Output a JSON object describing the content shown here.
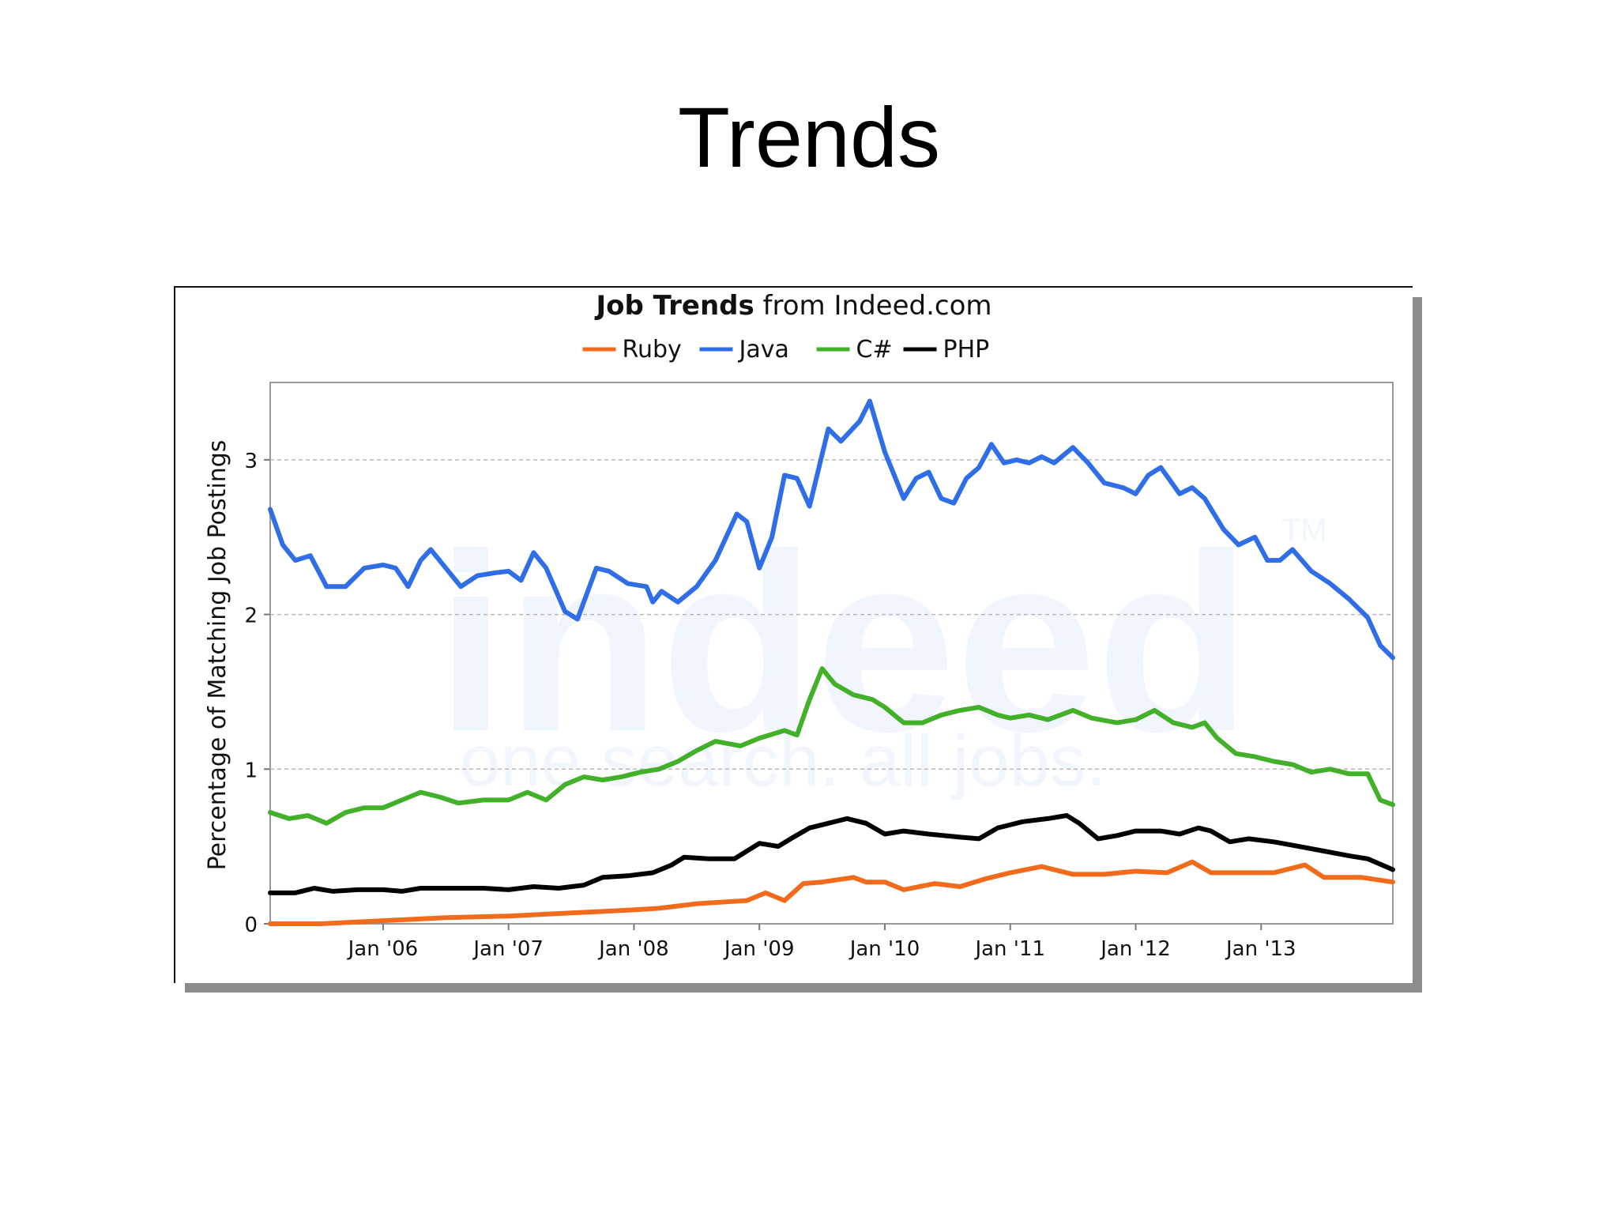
{
  "slide": {
    "title": "Trends"
  },
  "chart_data": {
    "type": "line",
    "title_bold": "Job Trends",
    "title_rest": " from Indeed.com",
    "ylabel": "Percentage of Matching Job Postings",
    "xlabel": "",
    "ylim": [
      0,
      3.5
    ],
    "xlim": [
      2005.1,
      2014.05
    ],
    "yticks": [
      0,
      1,
      2,
      3
    ],
    "xticks": [
      {
        "label": "Jan '06",
        "x": 2006.0
      },
      {
        "label": "Jan '07",
        "x": 2007.0
      },
      {
        "label": "Jan '08",
        "x": 2008.0
      },
      {
        "label": "Jan '09",
        "x": 2009.0
      },
      {
        "label": "Jan '10",
        "x": 2010.0
      },
      {
        "label": "Jan '11",
        "x": 2011.0
      },
      {
        "label": "Jan '12",
        "x": 2012.0
      },
      {
        "label": "Jan '13",
        "x": 2013.0
      }
    ],
    "grid": true,
    "legend": "top-center",
    "watermark": {
      "brand": "indeed",
      "tagline": "one search. all jobs.",
      "tm": "TM"
    },
    "series": [
      {
        "name": "Ruby",
        "color": "#f26b1d",
        "points": [
          [
            2005.1,
            0.0
          ],
          [
            2005.5,
            0.0
          ],
          [
            2006.0,
            0.02
          ],
          [
            2006.5,
            0.04
          ],
          [
            2007.0,
            0.05
          ],
          [
            2007.5,
            0.07
          ],
          [
            2008.0,
            0.09
          ],
          [
            2008.2,
            0.1
          ],
          [
            2008.5,
            0.13
          ],
          [
            2008.9,
            0.15
          ],
          [
            2009.05,
            0.2
          ],
          [
            2009.2,
            0.15
          ],
          [
            2009.35,
            0.26
          ],
          [
            2009.5,
            0.27
          ],
          [
            2009.75,
            0.3
          ],
          [
            2009.85,
            0.27
          ],
          [
            2010.0,
            0.27
          ],
          [
            2010.15,
            0.22
          ],
          [
            2010.4,
            0.26
          ],
          [
            2010.6,
            0.24
          ],
          [
            2010.8,
            0.29
          ],
          [
            2011.0,
            0.33
          ],
          [
            2011.25,
            0.37
          ],
          [
            2011.5,
            0.32
          ],
          [
            2011.75,
            0.32
          ],
          [
            2012.0,
            0.34
          ],
          [
            2012.25,
            0.33
          ],
          [
            2012.45,
            0.4
          ],
          [
            2012.6,
            0.33
          ],
          [
            2012.85,
            0.33
          ],
          [
            2013.1,
            0.33
          ],
          [
            2013.35,
            0.38
          ],
          [
            2013.5,
            0.3
          ],
          [
            2013.8,
            0.3
          ],
          [
            2014.05,
            0.27
          ]
        ]
      },
      {
        "name": "Java",
        "color": "#2f6ee6",
        "points": [
          [
            2005.1,
            2.68
          ],
          [
            2005.2,
            2.45
          ],
          [
            2005.3,
            2.35
          ],
          [
            2005.42,
            2.38
          ],
          [
            2005.55,
            2.18
          ],
          [
            2005.7,
            2.18
          ],
          [
            2005.85,
            2.3
          ],
          [
            2006.0,
            2.32
          ],
          [
            2006.1,
            2.3
          ],
          [
            2006.2,
            2.18
          ],
          [
            2006.3,
            2.35
          ],
          [
            2006.38,
            2.42
          ],
          [
            2006.5,
            2.3
          ],
          [
            2006.62,
            2.18
          ],
          [
            2006.75,
            2.25
          ],
          [
            2006.9,
            2.27
          ],
          [
            2007.0,
            2.28
          ],
          [
            2007.1,
            2.22
          ],
          [
            2007.2,
            2.4
          ],
          [
            2007.3,
            2.3
          ],
          [
            2007.45,
            2.02
          ],
          [
            2007.55,
            1.97
          ],
          [
            2007.7,
            2.3
          ],
          [
            2007.8,
            2.28
          ],
          [
            2007.95,
            2.2
          ],
          [
            2008.1,
            2.18
          ],
          [
            2008.15,
            2.08
          ],
          [
            2008.22,
            2.15
          ],
          [
            2008.35,
            2.08
          ],
          [
            2008.5,
            2.18
          ],
          [
            2008.65,
            2.35
          ],
          [
            2008.82,
            2.65
          ],
          [
            2008.9,
            2.6
          ],
          [
            2009.0,
            2.3
          ],
          [
            2009.1,
            2.5
          ],
          [
            2009.2,
            2.9
          ],
          [
            2009.3,
            2.88
          ],
          [
            2009.4,
            2.7
          ],
          [
            2009.55,
            3.2
          ],
          [
            2009.65,
            3.12
          ],
          [
            2009.8,
            3.25
          ],
          [
            2009.88,
            3.38
          ],
          [
            2010.0,
            3.05
          ],
          [
            2010.15,
            2.75
          ],
          [
            2010.25,
            2.88
          ],
          [
            2010.35,
            2.92
          ],
          [
            2010.45,
            2.75
          ],
          [
            2010.55,
            2.72
          ],
          [
            2010.65,
            2.88
          ],
          [
            2010.75,
            2.95
          ],
          [
            2010.85,
            3.1
          ],
          [
            2010.95,
            2.98
          ],
          [
            2011.05,
            3.0
          ],
          [
            2011.15,
            2.98
          ],
          [
            2011.25,
            3.02
          ],
          [
            2011.35,
            2.98
          ],
          [
            2011.5,
            3.08
          ],
          [
            2011.62,
            2.98
          ],
          [
            2011.75,
            2.85
          ],
          [
            2011.9,
            2.82
          ],
          [
            2012.0,
            2.78
          ],
          [
            2012.1,
            2.9
          ],
          [
            2012.2,
            2.95
          ],
          [
            2012.35,
            2.78
          ],
          [
            2012.45,
            2.82
          ],
          [
            2012.55,
            2.75
          ],
          [
            2012.7,
            2.55
          ],
          [
            2012.82,
            2.45
          ],
          [
            2012.95,
            2.5
          ],
          [
            2013.05,
            2.35
          ],
          [
            2013.15,
            2.35
          ],
          [
            2013.25,
            2.42
          ],
          [
            2013.4,
            2.28
          ],
          [
            2013.55,
            2.2
          ],
          [
            2013.7,
            2.1
          ],
          [
            2013.85,
            1.98
          ],
          [
            2013.95,
            1.8
          ],
          [
            2014.05,
            1.72
          ]
        ]
      },
      {
        "name": "C#",
        "color": "#43b02a",
        "points": [
          [
            2005.1,
            0.72
          ],
          [
            2005.25,
            0.68
          ],
          [
            2005.4,
            0.7
          ],
          [
            2005.55,
            0.65
          ],
          [
            2005.7,
            0.72
          ],
          [
            2005.85,
            0.75
          ],
          [
            2006.0,
            0.75
          ],
          [
            2006.15,
            0.8
          ],
          [
            2006.3,
            0.85
          ],
          [
            2006.45,
            0.82
          ],
          [
            2006.6,
            0.78
          ],
          [
            2006.8,
            0.8
          ],
          [
            2007.0,
            0.8
          ],
          [
            2007.15,
            0.85
          ],
          [
            2007.3,
            0.8
          ],
          [
            2007.45,
            0.9
          ],
          [
            2007.6,
            0.95
          ],
          [
            2007.75,
            0.93
          ],
          [
            2007.9,
            0.95
          ],
          [
            2008.05,
            0.98
          ],
          [
            2008.2,
            1.0
          ],
          [
            2008.35,
            1.05
          ],
          [
            2008.5,
            1.12
          ],
          [
            2008.65,
            1.18
          ],
          [
            2008.85,
            1.15
          ],
          [
            2009.0,
            1.2
          ],
          [
            2009.2,
            1.25
          ],
          [
            2009.3,
            1.22
          ],
          [
            2009.4,
            1.45
          ],
          [
            2009.5,
            1.65
          ],
          [
            2009.6,
            1.55
          ],
          [
            2009.75,
            1.48
          ],
          [
            2009.9,
            1.45
          ],
          [
            2010.0,
            1.4
          ],
          [
            2010.15,
            1.3
          ],
          [
            2010.3,
            1.3
          ],
          [
            2010.45,
            1.35
          ],
          [
            2010.6,
            1.38
          ],
          [
            2010.75,
            1.4
          ],
          [
            2010.9,
            1.35
          ],
          [
            2011.0,
            1.33
          ],
          [
            2011.15,
            1.35
          ],
          [
            2011.3,
            1.32
          ],
          [
            2011.5,
            1.38
          ],
          [
            2011.65,
            1.33
          ],
          [
            2011.85,
            1.3
          ],
          [
            2012.0,
            1.32
          ],
          [
            2012.15,
            1.38
          ],
          [
            2012.3,
            1.3
          ],
          [
            2012.45,
            1.27
          ],
          [
            2012.55,
            1.3
          ],
          [
            2012.65,
            1.2
          ],
          [
            2012.8,
            1.1
          ],
          [
            2012.95,
            1.08
          ],
          [
            2013.1,
            1.05
          ],
          [
            2013.25,
            1.03
          ],
          [
            2013.4,
            0.98
          ],
          [
            2013.55,
            1.0
          ],
          [
            2013.7,
            0.97
          ],
          [
            2013.85,
            0.97
          ],
          [
            2013.95,
            0.8
          ],
          [
            2014.05,
            0.77
          ]
        ]
      },
      {
        "name": "PHP",
        "color": "#000000",
        "points": [
          [
            2005.1,
            0.2
          ],
          [
            2005.3,
            0.2
          ],
          [
            2005.45,
            0.23
          ],
          [
            2005.6,
            0.21
          ],
          [
            2005.8,
            0.22
          ],
          [
            2006.0,
            0.22
          ],
          [
            2006.15,
            0.21
          ],
          [
            2006.3,
            0.23
          ],
          [
            2006.5,
            0.23
          ],
          [
            2006.8,
            0.23
          ],
          [
            2007.0,
            0.22
          ],
          [
            2007.2,
            0.24
          ],
          [
            2007.4,
            0.23
          ],
          [
            2007.6,
            0.25
          ],
          [
            2007.75,
            0.3
          ],
          [
            2007.95,
            0.31
          ],
          [
            2008.15,
            0.33
          ],
          [
            2008.3,
            0.38
          ],
          [
            2008.4,
            0.43
          ],
          [
            2008.6,
            0.42
          ],
          [
            2008.8,
            0.42
          ],
          [
            2009.0,
            0.52
          ],
          [
            2009.15,
            0.5
          ],
          [
            2009.25,
            0.55
          ],
          [
            2009.4,
            0.62
          ],
          [
            2009.55,
            0.65
          ],
          [
            2009.7,
            0.68
          ],
          [
            2009.85,
            0.65
          ],
          [
            2010.0,
            0.58
          ],
          [
            2010.15,
            0.6
          ],
          [
            2010.35,
            0.58
          ],
          [
            2010.6,
            0.56
          ],
          [
            2010.75,
            0.55
          ],
          [
            2010.9,
            0.62
          ],
          [
            2011.1,
            0.66
          ],
          [
            2011.3,
            0.68
          ],
          [
            2011.45,
            0.7
          ],
          [
            2011.55,
            0.65
          ],
          [
            2011.7,
            0.55
          ],
          [
            2011.85,
            0.57
          ],
          [
            2012.0,
            0.6
          ],
          [
            2012.2,
            0.6
          ],
          [
            2012.35,
            0.58
          ],
          [
            2012.5,
            0.62
          ],
          [
            2012.6,
            0.6
          ],
          [
            2012.75,
            0.53
          ],
          [
            2012.9,
            0.55
          ],
          [
            2013.1,
            0.53
          ],
          [
            2013.3,
            0.5
          ],
          [
            2013.5,
            0.47
          ],
          [
            2013.7,
            0.44
          ],
          [
            2013.85,
            0.42
          ],
          [
            2014.05,
            0.35
          ]
        ]
      }
    ]
  }
}
